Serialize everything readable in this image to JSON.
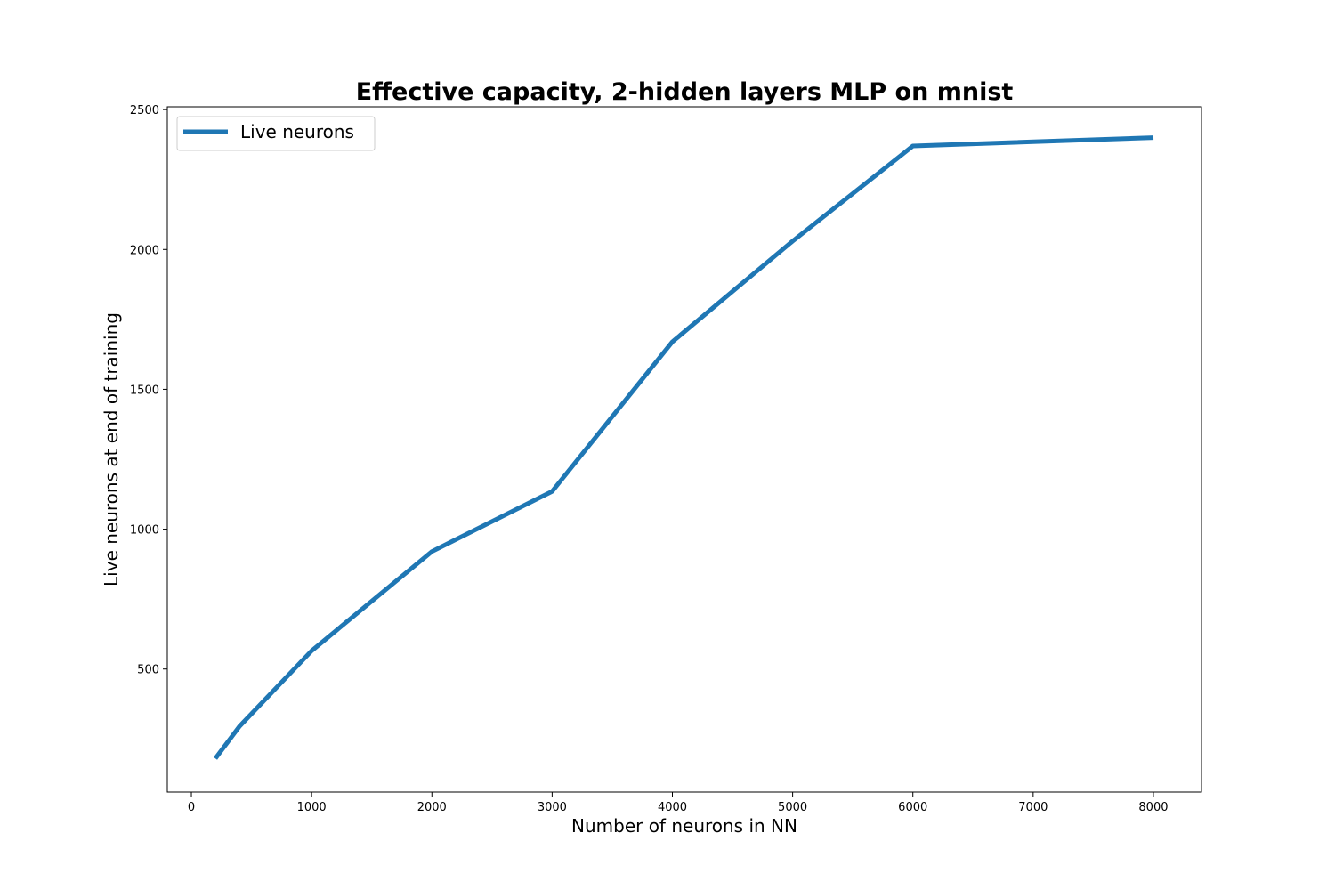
{
  "chart_data": {
    "type": "line",
    "title": "Effective capacity, 2-hidden layers MLP on mnist",
    "xlabel": "Number of neurons in NN",
    "ylabel": "Live neurons at end of training",
    "xlim": [
      -200,
      8400
    ],
    "ylim": [
      60,
      2510
    ],
    "xticks": [
      0,
      1000,
      2000,
      3000,
      4000,
      5000,
      6000,
      7000,
      8000
    ],
    "yticks": [
      500,
      1000,
      1500,
      2000,
      2500
    ],
    "grid": false,
    "legend_position": "top-left",
    "series": [
      {
        "name": "Live neurons",
        "color": "#1f77b4",
        "x": [
          200,
          400,
          1000,
          2000,
          3000,
          4000,
          5000,
          6000,
          8000
        ],
        "y": [
          180,
          295,
          565,
          920,
          1135,
          1670,
          2030,
          2370,
          2400
        ]
      }
    ]
  }
}
